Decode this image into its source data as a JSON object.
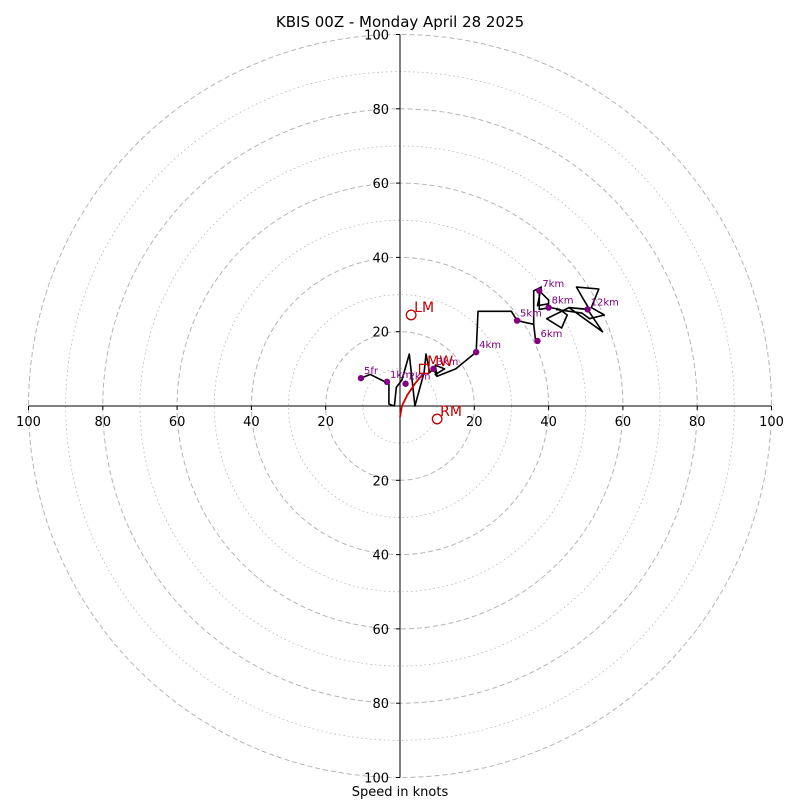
{
  "chart_data": {
    "type": "hodograph",
    "title": "KBIS 00Z - Monday April 28 2025",
    "xlabel": "Speed in knots",
    "range": [
      -100,
      100
    ],
    "rings_major": [
      20,
      40,
      60,
      80,
      100
    ],
    "rings_minor": [
      10,
      30,
      50,
      70,
      90
    ],
    "tick_labels": {
      "right": [
        "20",
        "40",
        "60",
        "80",
        "100"
      ],
      "left": [
        "20",
        "40",
        "60",
        "80",
        "100"
      ],
      "up": [
        "20",
        "40",
        "60",
        "80",
        "100"
      ],
      "down": [
        "20",
        "40",
        "60",
        "80",
        "100"
      ]
    },
    "tick_values": [
      20,
      40,
      60,
      80,
      100
    ],
    "grid": true,
    "colors": {
      "ring": "#b5b5b5",
      "axis": "#000000",
      "trace_low": "#d40000",
      "trace": "#000000",
      "height_marker": "#800080",
      "motion": "#c00000"
    },
    "trace_low": [
      [
        0.0,
        -3.0
      ],
      [
        0.5,
        0.0
      ],
      [
        2.0,
        3.0
      ],
      [
        4.0,
        6.0
      ],
      [
        6.5,
        9.0
      ]
    ],
    "trace": [
      [
        6.5,
        9.0
      ],
      [
        7.0,
        14.0
      ],
      [
        8.0,
        9.0
      ],
      [
        9.0,
        10.0
      ],
      [
        10.0,
        8.0
      ],
      [
        9.5,
        11.0
      ],
      [
        12.0,
        10.0
      ],
      [
        9.5,
        8.5
      ],
      [
        10.0,
        8.0
      ],
      [
        15.0,
        10.0
      ],
      [
        20.5,
        14.5
      ],
      [
        21.0,
        25.5
      ],
      [
        30.0,
        25.5
      ],
      [
        31.5,
        23.0
      ],
      [
        36.0,
        22.0
      ],
      [
        36.5,
        17.5
      ],
      [
        36.0,
        22.0
      ],
      [
        36.0,
        31.0
      ],
      [
        38.0,
        32.0
      ],
      [
        37.0,
        27.0
      ],
      [
        40.0,
        27.5
      ],
      [
        40.0,
        28.5
      ],
      [
        37.5,
        31.0
      ],
      [
        37.5,
        26.0
      ],
      [
        40.5,
        26.5
      ],
      [
        43.0,
        26.0
      ],
      [
        45.0,
        24.5
      ],
      [
        43.5,
        21.0
      ],
      [
        39.5,
        23.5
      ],
      [
        45.5,
        26.5
      ],
      [
        50.5,
        26.0
      ],
      [
        54.5,
        20.0
      ],
      [
        45.5,
        26.5
      ],
      [
        51.0,
        26.0
      ],
      [
        49.5,
        28.5
      ],
      [
        47.5,
        32.0
      ],
      [
        53.5,
        31.5
      ],
      [
        51.5,
        26.5
      ],
      [
        55.0,
        24.5
      ],
      [
        51.0,
        23.5
      ],
      [
        49.0,
        25.0
      ],
      [
        42.0,
        26.0
      ]
    ],
    "trace_left": [
      [
        6.5,
        9.0
      ],
      [
        4.0,
        0.0
      ],
      [
        2.5,
        14.0
      ],
      [
        0.5,
        7.0
      ],
      [
        -1.0,
        5.0
      ],
      [
        -1.5,
        0.0
      ],
      [
        -3.0,
        0.5
      ],
      [
        -3.0,
        6.0
      ],
      [
        -5.0,
        7.0
      ],
      [
        -7.0,
        8.0
      ],
      [
        -8.0,
        8.5
      ],
      [
        -10.5,
        7.5
      ]
    ],
    "height_markers": [
      {
        "label": "5fr",
        "u": -10.5,
        "v": 7.5
      },
      {
        "label": "1km",
        "u": -3.5,
        "v": 6.5
      },
      {
        "label": "2km",
        "u": 1.5,
        "v": 6.0
      },
      {
        "label": "3km",
        "u": 9.0,
        "v": 10.0
      },
      {
        "label": "4km",
        "u": 20.5,
        "v": 14.5
      },
      {
        "label": "5km",
        "u": 31.5,
        "v": 23.0
      },
      {
        "label": "6km",
        "u": 37.0,
        "v": 17.5
      },
      {
        "label": "7km",
        "u": 37.5,
        "v": 31.0
      },
      {
        "label": "8km",
        "u": 40.0,
        "v": 26.5
      },
      {
        "label": "12km",
        "u": 50.5,
        "v": 26.0
      }
    ],
    "storm_motion": [
      {
        "label": "LM",
        "u": 3.0,
        "v": 24.5,
        "shape": "circle"
      },
      {
        "label": "MW",
        "u": 6.5,
        "v": 10.0,
        "shape": "square"
      },
      {
        "label": "RM",
        "u": 10.0,
        "v": -3.5,
        "shape": "circle"
      }
    ]
  }
}
